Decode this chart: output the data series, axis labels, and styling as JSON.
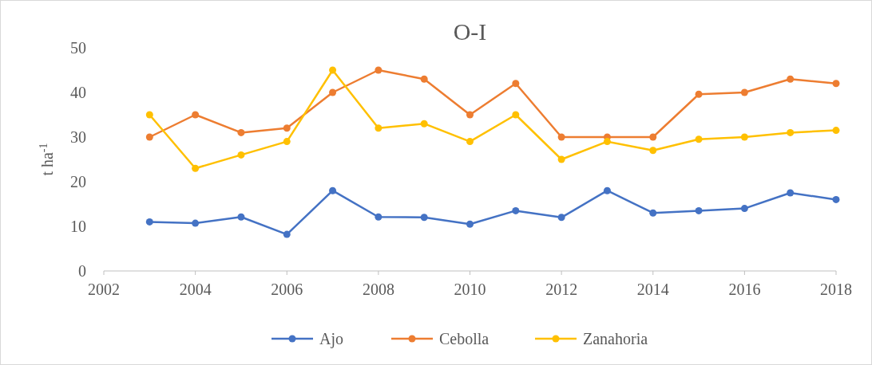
{
  "chart_data": {
    "type": "line",
    "title": "O-I",
    "ylabel": "t ha$^{-1}$",
    "x": [
      2003,
      2004,
      2005,
      2006,
      2007,
      2008,
      2009,
      2010,
      2011,
      2012,
      2013,
      2014,
      2015,
      2016,
      2017,
      2018
    ],
    "series": [
      {
        "name": "Ajo",
        "color": "#4472c4",
        "values": [
          11,
          10.7,
          12.1,
          8.2,
          18,
          12.1,
          12,
          10.5,
          13.5,
          12,
          18,
          13,
          13.5,
          14,
          17.5,
          16
        ]
      },
      {
        "name": "Cebolla",
        "color": "#ed7d31",
        "values": [
          30,
          35,
          31,
          32,
          40,
          45,
          43,
          35,
          42,
          30,
          30,
          30,
          39.6,
          40,
          43,
          42
        ]
      },
      {
        "name": "Zanahoria",
        "color": "#ffc000",
        "values": [
          35,
          23,
          26,
          29,
          45,
          32,
          33,
          29,
          35,
          25,
          29,
          27,
          29.5,
          30,
          31,
          31.5
        ]
      }
    ],
    "xlim": [
      2002,
      2018
    ],
    "xticks": [
      2002,
      2004,
      2006,
      2008,
      2010,
      2012,
      2014,
      2016,
      2018
    ],
    "ylim": [
      0,
      50
    ],
    "yticks": [
      0,
      10,
      20,
      30,
      40,
      50
    ],
    "legend": "bottom",
    "marker": "circle",
    "line_style": "solid"
  }
}
